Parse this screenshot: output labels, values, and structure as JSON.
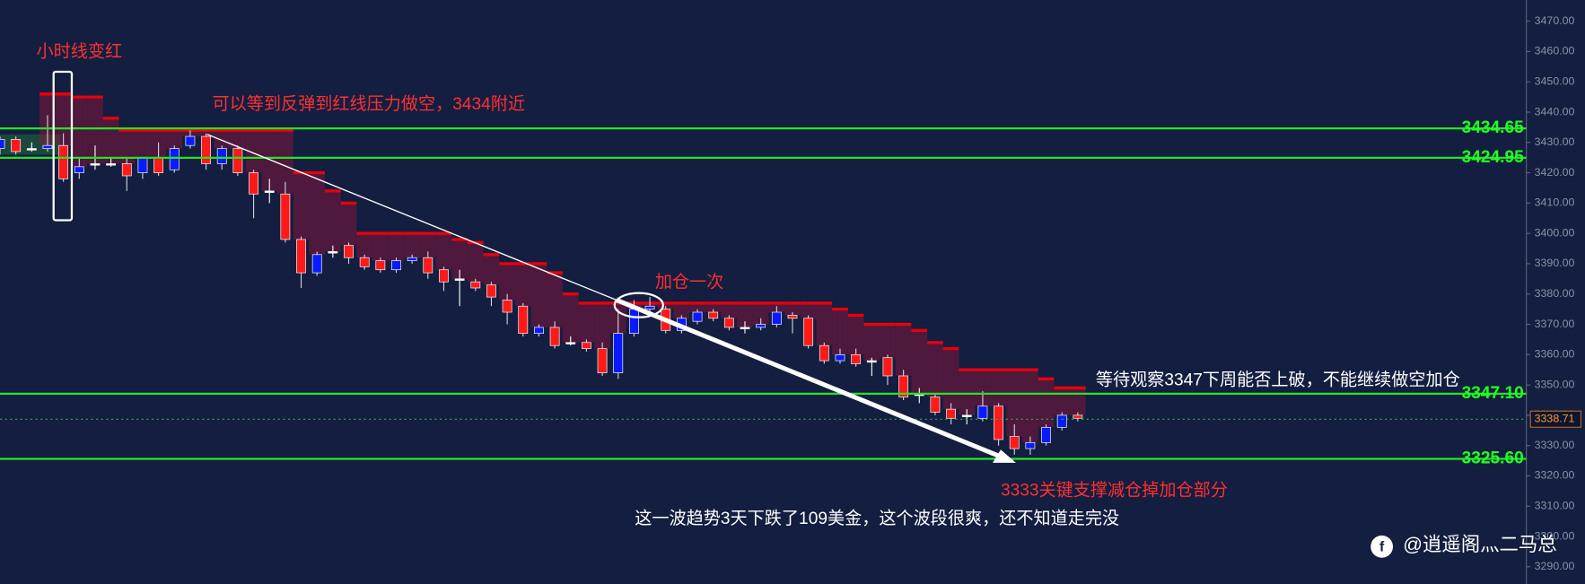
{
  "chart_data": {
    "type": "candlestick",
    "open": [
      3428,
      3431,
      3428,
      3428,
      3429,
      3420,
      3423,
      3423,
      3423,
      3420,
      3425,
      3421,
      3429,
      3432,
      3423,
      3428,
      3420,
      3414,
      3413,
      3398,
      3387,
      3394,
      3396,
      3392,
      3391,
      3388,
      3391,
      3392,
      3388,
      3385,
      3384,
      3383,
      3378,
      3376,
      3367,
      3369,
      3364,
      3364,
      3362,
      3354,
      3367,
      3375,
      3375,
      3368,
      3371,
      3374,
      3372,
      3369,
      3369,
      3370,
      3373,
      3372,
      3363,
      3358,
      3360,
      3358,
      3359,
      3353,
      3347,
      3346,
      3342,
      3340,
      3339,
      3343,
      3333,
      3329,
      3331,
      3336,
      3340
    ],
    "high": [
      3432,
      3432,
      3430,
      3439,
      3433,
      3425,
      3429,
      3425,
      3425,
      3425,
      3430,
      3429,
      3434,
      3433,
      3429,
      3429,
      3421,
      3418,
      3417,
      3399,
      3394,
      3396,
      3397,
      3393,
      3392,
      3392,
      3393,
      3394,
      3389,
      3388,
      3385,
      3384,
      3380,
      3377,
      3370,
      3371,
      3366,
      3365,
      3364,
      3375,
      3378,
      3379,
      3376,
      3373,
      3375,
      3375,
      3373,
      3371,
      3372,
      3376,
      3374,
      3373,
      3364,
      3362,
      3362,
      3359,
      3360,
      3355,
      3349,
      3347,
      3344,
      3342,
      3348,
      3344,
      3337,
      3333,
      3337,
      3341,
      3341
    ],
    "low": [
      3426,
      3426,
      3427,
      3427,
      3417,
      3418,
      3421,
      3422,
      3414,
      3418,
      3419,
      3420,
      3428,
      3421,
      3421,
      3419,
      3405,
      3410,
      3397,
      3382,
      3386,
      3392,
      3390,
      3388,
      3387,
      3387,
      3390,
      3385,
      3381,
      3376,
      3381,
      3376,
      3370,
      3366,
      3366,
      3362,
      3363,
      3361,
      3353,
      3352,
      3366,
      3373,
      3367,
      3367,
      3370,
      3371,
      3368,
      3367,
      3368,
      3369,
      3367,
      3362,
      3357,
      3357,
      3356,
      3353,
      3350,
      3345,
      3344,
      3340,
      3337,
      3337,
      3338,
      3330,
      3327,
      3327,
      3330,
      3335,
      3338
    ],
    "close": [
      3431,
      3427,
      3428,
      3429,
      3418,
      3422,
      3423,
      3423,
      3419,
      3425,
      3420,
      3428,
      3432,
      3423,
      3428,
      3420,
      3413,
      3414,
      3398,
      3387,
      3393,
      3394,
      3392,
      3389,
      3388,
      3391,
      3392,
      3387,
      3384,
      3385,
      3382,
      3379,
      3374,
      3367,
      3369,
      3363,
      3364,
      3362,
      3354,
      3367,
      3375,
      3376,
      3368,
      3372,
      3374,
      3372,
      3369,
      3369,
      3370,
      3374,
      3372,
      3363,
      3358,
      3360,
      3357,
      3358,
      3353,
      3346,
      3347,
      3341,
      3339,
      3340,
      3343,
      3332,
      3329,
      3331,
      3336,
      3340,
      3339
    ],
    "resistance": [
      null,
      null,
      null,
      3446,
      3446,
      3445,
      3445,
      3438,
      3434,
      3434,
      3434,
      3434,
      3434,
      3434,
      3434,
      3434,
      3434,
      3434,
      3434,
      3420,
      3420,
      3414,
      3410,
      3400,
      3400,
      3400,
      3400,
      3400,
      3400,
      3398,
      3397,
      3393,
      3390,
      3390,
      3390,
      3387,
      3380,
      3377,
      3377,
      3377,
      3377,
      3377,
      3377,
      3377,
      3377,
      3377,
      3377,
      3377,
      3377,
      3377,
      3377,
      3377,
      3377,
      3375,
      3373,
      3370,
      3370,
      3370,
      3368,
      3364,
      3362,
      3355,
      3355,
      3355,
      3355,
      3355,
      3352,
      3349,
      3349
    ],
    "up_color": "#0a1aff",
    "down_color": "#ff1a1a",
    "doji_color": "#ffffff",
    "resistance_color": "#e8000a",
    "ylim": [
      3284.33,
      3477
    ],
    "yticks": [
      {
        "value": 3290,
        "label": "3290.00"
      },
      {
        "value": 3300,
        "label": "3300.00"
      },
      {
        "value": 3310,
        "label": "3310.00"
      },
      {
        "value": 3320,
        "label": "3320.00"
      },
      {
        "value": 3330,
        "label": "3330.00"
      },
      {
        "value": 3340,
        "label": "3340.00"
      },
      {
        "value": 3350,
        "label": "3350.00"
      },
      {
        "value": 3360,
        "label": "3360.00"
      },
      {
        "value": 3370,
        "label": "3370.00"
      },
      {
        "value": 3380,
        "label": "3380.00"
      },
      {
        "value": 3390,
        "label": "3390.00"
      },
      {
        "value": 3400,
        "label": "3400.00"
      },
      {
        "value": 3410,
        "label": "3410.00"
      },
      {
        "value": 3420,
        "label": "3420.00"
      },
      {
        "value": 3430,
        "label": "3430.00"
      },
      {
        "value": 3440,
        "label": "3440.00"
      },
      {
        "value": 3450,
        "label": "3450.00"
      },
      {
        "value": 3460,
        "label": "3460.00"
      },
      {
        "value": 3470,
        "label": "3470.00"
      }
    ],
    "levels": [
      3434.65,
      3424.95,
      {
        "value": 3347.1,
        "label": "3347.10"
      },
      {
        "value": 3325.6,
        "label": "3325.60"
      }
    ],
    "level_color": "#22e622",
    "last_price": 3338.71,
    "annotations": [
      "小时线变红",
      "可以等到反弹到红线压力做空，3434附近",
      "加仓一次",
      "等待观察3347下周能否上破，不能继续做空加仓",
      "3333关键支撑减仓掉加仓部分",
      "这一波趋势3天下跌了109美金，这个波段很爽，还不知道走完没"
    ],
    "watermark": "@逍遥阁灬二马总"
  }
}
